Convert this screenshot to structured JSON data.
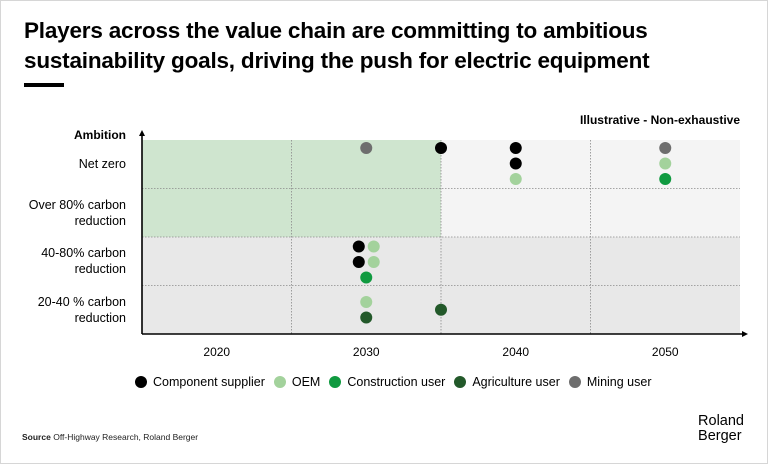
{
  "title": "Players across the value chain are committing to ambitious sustainability goals, driving the push for electric equipment",
  "note": "Illustrative - Non-exhaustive",
  "source_label": "Source",
  "source_text": "Off-Highway Research, Roland Berger",
  "logo": {
    "line1": "Roland",
    "line2": "Berger"
  },
  "chart_data": {
    "type": "scatter",
    "ylabel": "Ambition",
    "xlabel": "",
    "x_ticks": [
      2020,
      2030,
      2040,
      2050
    ],
    "x_tick_labels": [
      "2020",
      "2030",
      "2040",
      "2050"
    ],
    "xlim": [
      2015,
      2055
    ],
    "y_categories": [
      "20-40 % carbon reduction",
      "40-80% carbon reduction",
      "Over 80% carbon reduction",
      "Net zero"
    ],
    "y_category_labels": [
      [
        "20-40 % carbon",
        "reduction"
      ],
      [
        "40-80% carbon",
        "reduction"
      ],
      [
        "Over 80% carbon",
        "reduction"
      ],
      [
        "Net zero"
      ]
    ],
    "highlight_region": {
      "x": [
        2015,
        2035
      ],
      "y_categories": [
        "Over 80% carbon reduction",
        "Net zero"
      ],
      "color": "#cfe5cf"
    },
    "grid": true,
    "legend_position": "bottom",
    "series": [
      {
        "name": "Component supplier",
        "color": "#000000",
        "points": [
          {
            "x": 2035,
            "y": "Net zero",
            "stack": 0
          },
          {
            "x": 2040,
            "y": "Net zero",
            "stack": 0
          },
          {
            "x": 2040,
            "y": "Net zero",
            "stack": 1
          },
          {
            "x": 2029.5,
            "y": "40-80% carbon reduction",
            "stack": 0
          },
          {
            "x": 2029.5,
            "y": "40-80% carbon reduction",
            "stack": 1
          }
        ]
      },
      {
        "name": "OEM",
        "color": "#a3d29c",
        "points": [
          {
            "x": 2040,
            "y": "Net zero",
            "stack": 2
          },
          {
            "x": 2050,
            "y": "Net zero",
            "stack": 1
          },
          {
            "x": 2030.5,
            "y": "40-80% carbon reduction",
            "stack": 0
          },
          {
            "x": 2030.5,
            "y": "40-80% carbon reduction",
            "stack": 1
          },
          {
            "x": 2030,
            "y": "20-40 % carbon reduction",
            "stack": 0
          }
        ]
      },
      {
        "name": "Construction user",
        "color": "#109a40",
        "points": [
          {
            "x": 2050,
            "y": "Net zero",
            "stack": 2
          },
          {
            "x": 2030,
            "y": "40-80% carbon reduction",
            "stack": 2
          }
        ]
      },
      {
        "name": "Agriculture user",
        "color": "#23592a",
        "points": [
          {
            "x": 2030,
            "y": "20-40 % carbon reduction",
            "stack": 1
          },
          {
            "x": 2035,
            "y": "20-40 % carbon reduction",
            "stack": 0.5
          }
        ]
      },
      {
        "name": "Mining user",
        "color": "#6e6e6e",
        "points": [
          {
            "x": 2030,
            "y": "Net zero",
            "stack": 0
          },
          {
            "x": 2050,
            "y": "Net zero",
            "stack": 0
          }
        ]
      }
    ]
  }
}
